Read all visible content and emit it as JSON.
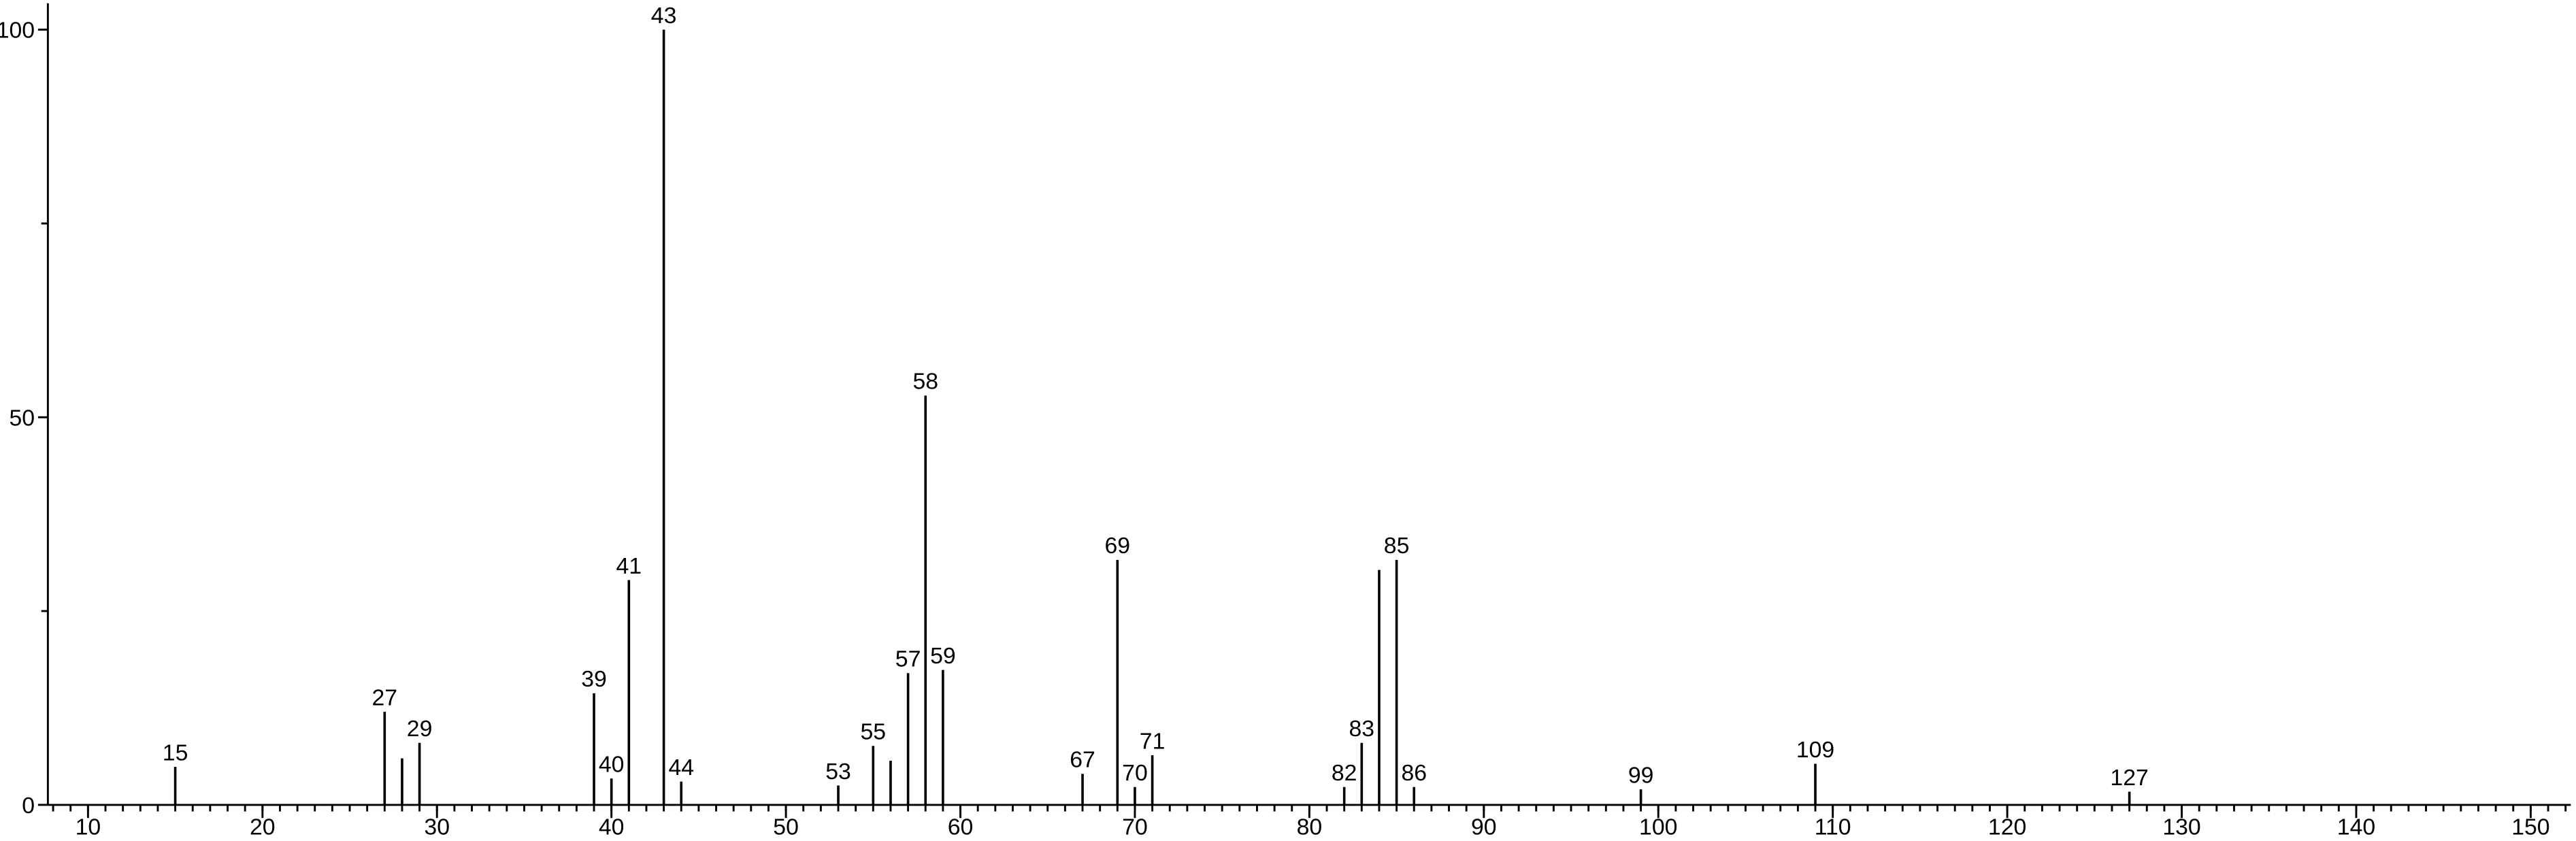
{
  "chart_data": {
    "type": "stem",
    "x": [
      15,
      27,
      28,
      29,
      39,
      40,
      41,
      43,
      44,
      53,
      55,
      56,
      57,
      58,
      59,
      67,
      69,
      70,
      71,
      82,
      83,
      84,
      85,
      86,
      99,
      109,
      127
    ],
    "values": [
      4.9,
      12,
      6,
      8,
      14.4,
      3.4,
      29,
      100,
      3,
      2.5,
      7.6,
      5.7,
      17,
      52.8,
      17.4,
      4,
      31.6,
      2.3,
      6.4,
      2.3,
      8,
      30.3,
      31.6,
      2.3,
      2,
      5.3,
      1.7
    ],
    "labels": [
      "15",
      "27",
      null,
      "29",
      "39",
      "40",
      "41",
      "43",
      "44",
      "53",
      "55",
      null,
      "57",
      "58",
      "59",
      "67",
      "69",
      "70",
      "71",
      "82",
      "83",
      null,
      "85",
      "86",
      "99",
      "109",
      "127"
    ],
    "color": "#000000",
    "xlim": [
      7.7,
      152.3
    ],
    "xticks": [
      10,
      20,
      30,
      40,
      50,
      60,
      70,
      80,
      90,
      100,
      110,
      120,
      130,
      140,
      150
    ],
    "x_minor_step": 1,
    "ylim": [
      0,
      103.4
    ],
    "yticks": [
      0,
      50,
      100
    ],
    "y_minor_ticks": [
      25,
      75
    ]
  }
}
